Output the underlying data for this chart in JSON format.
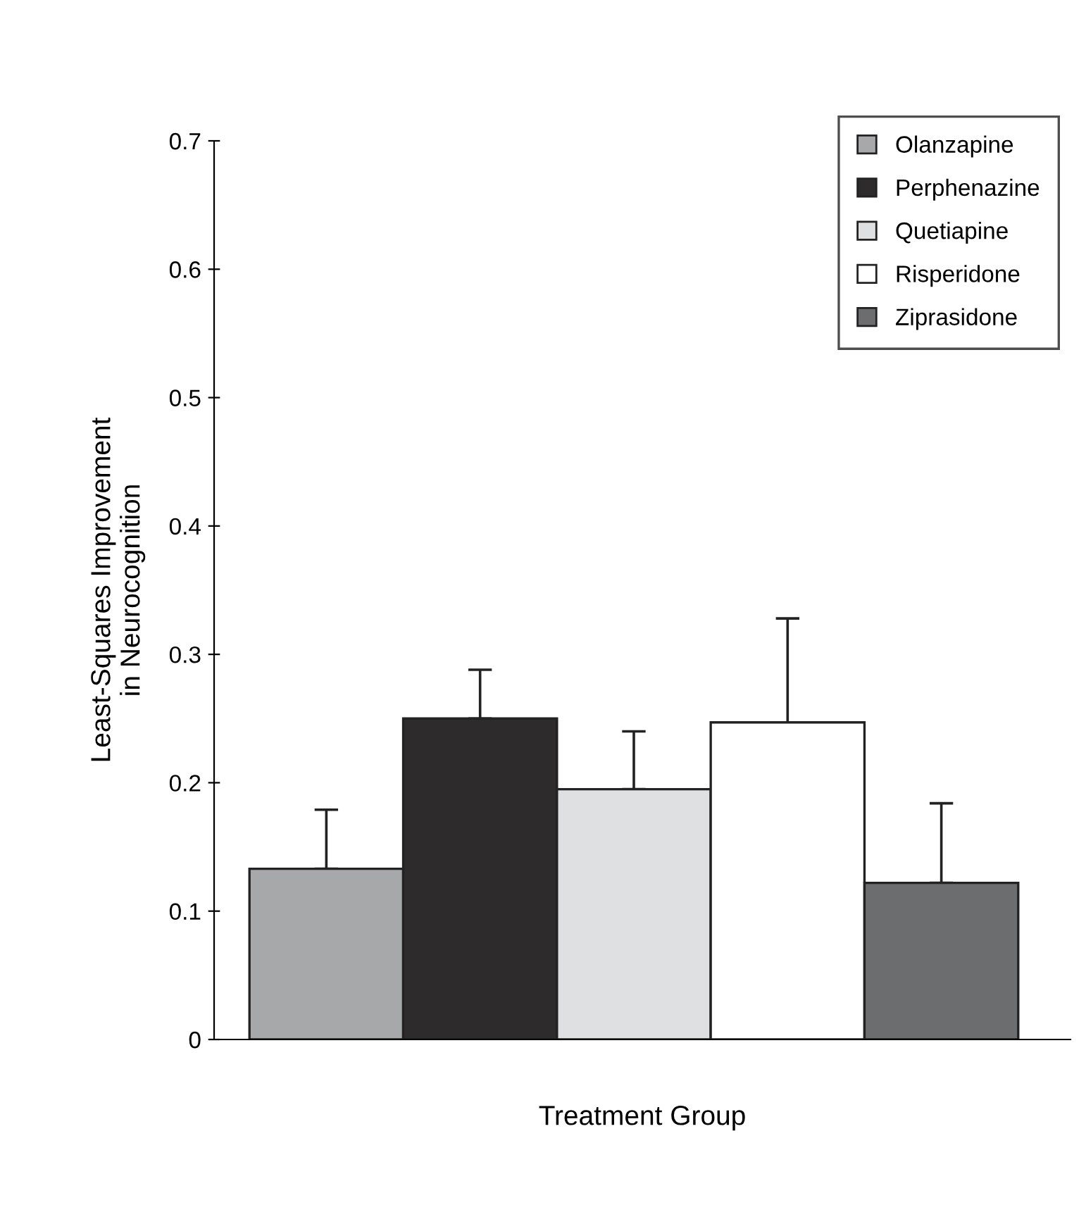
{
  "chart_data": {
    "type": "bar",
    "xlabel": "Treatment Group",
    "ylabel": "Least-Squares Improvement\nin Neurocognition",
    "categories": [
      null,
      null,
      null,
      null,
      null
    ],
    "series": [
      {
        "name": "Olanzapine",
        "color": "#a7a8aa",
        "values": [
          0.133,
          null,
          null,
          null,
          null
        ],
        "errors": [
          [
            0.133,
            0.179
          ],
          null,
          null,
          null,
          null
        ]
      },
      {
        "name": "Perphenazine",
        "color": "#2e2b2c",
        "values": [
          null,
          0.25,
          null,
          null,
          null
        ],
        "errors": [
          null,
          [
            0.25,
            0.288
          ],
          null,
          null,
          null
        ]
      },
      {
        "name": "Quetiapine",
        "color": "#dfe0e2",
        "values": [
          null,
          null,
          0.195,
          null,
          null
        ],
        "errors": [
          null,
          null,
          [
            0.195,
            0.24
          ],
          null,
          null
        ]
      },
      {
        "name": "Risperidone",
        "color": "#ffffff",
        "values": [
          null,
          null,
          null,
          0.247,
          null
        ],
        "errors": [
          null,
          null,
          null,
          [
            0.247,
            0.328
          ],
          null
        ]
      },
      {
        "name": "Ziprasidone",
        "color": "#6b6d6f",
        "values": [
          null,
          null,
          null,
          null,
          0.122
        ],
        "errors": [
          null,
          null,
          null,
          null,
          [
            0.122,
            0.184
          ]
        ]
      }
    ],
    "ylim": [
      0,
      0.7
    ],
    "yticks": [
      0,
      0.1,
      0.2,
      0.3,
      0.4,
      0.5,
      0.6,
      0.7
    ],
    "grid": false,
    "legend": "top right"
  }
}
